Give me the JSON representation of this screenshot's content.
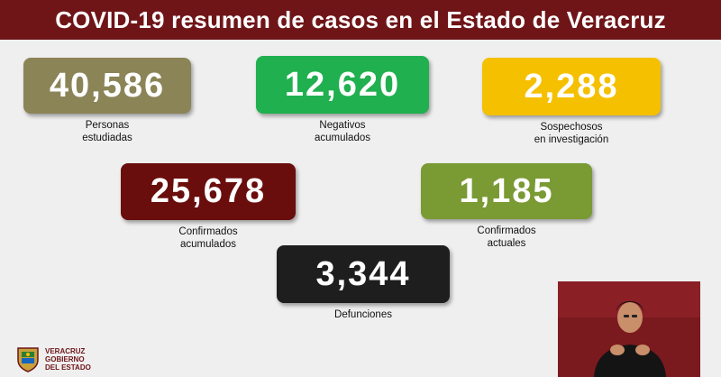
{
  "header": {
    "title": "COVID-19 resumen de casos en el Estado de Veracruz"
  },
  "stats": {
    "studied": {
      "value": "40,586",
      "label": "Personas\nestudiadas",
      "color": "#8b8457"
    },
    "negative": {
      "value": "12,620",
      "label": "Negativos\nacumulados",
      "color": "#20b04f"
    },
    "suspect": {
      "value": "2,288",
      "label": "Sospechosos\nen investigación",
      "color": "#f5c000"
    },
    "confirmed": {
      "value": "25,678",
      "label": "Confirmados\nacumulados",
      "color": "#6a0d0d"
    },
    "active": {
      "value": "1,185",
      "label": "Confirmados\nactuales",
      "color": "#7a9a34"
    },
    "deaths": {
      "value": "3,344",
      "label": "Defunciones",
      "color": "#1e1e1e"
    }
  },
  "logo": {
    "text": "VERACRUZ\nGOBIERNO\nDEL ESTADO"
  }
}
